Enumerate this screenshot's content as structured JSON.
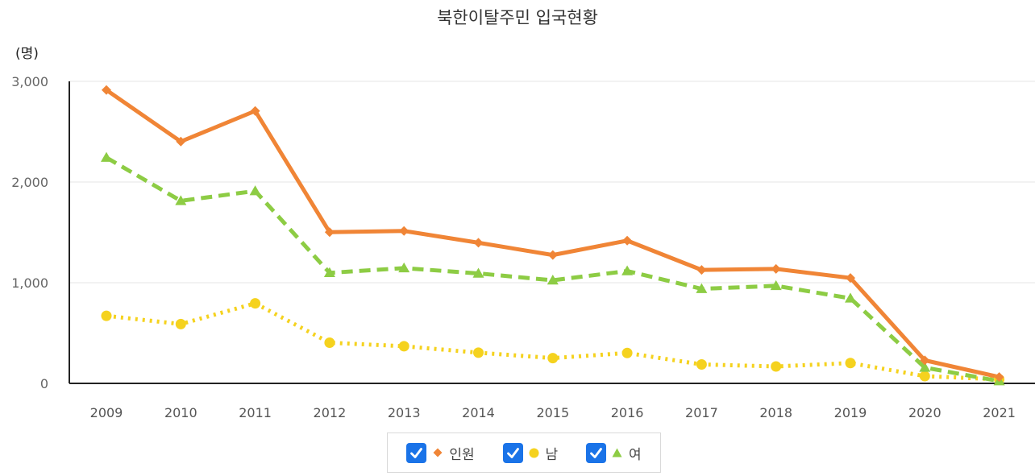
{
  "chart_data": {
    "type": "line",
    "title": "북한이탈주민 입국현황",
    "unit": "(명)",
    "categories": [
      "2009",
      "2010",
      "2011",
      "2012",
      "2013",
      "2014",
      "2015",
      "2016",
      "2017",
      "2018",
      "2019",
      "2020",
      "2021"
    ],
    "ylim": [
      0,
      3000
    ],
    "yticks": [
      0,
      1000,
      2000,
      3000
    ],
    "ytick_labels": [
      "0",
      "1,000",
      "2,000",
      "3,000"
    ],
    "grid": true,
    "legend_position": "bottom",
    "series": [
      {
        "name": "인원",
        "color": "#f08536",
        "line_style": "solid",
        "marker": "diamond",
        "values": [
          2914,
          2402,
          2706,
          1502,
          1514,
          1397,
          1275,
          1418,
          1127,
          1137,
          1047,
          229,
          63
        ]
      },
      {
        "name": "남",
        "color": "#f5d21e",
        "line_style": "dotted",
        "marker": "circle",
        "values": [
          671,
          589,
          795,
          404,
          369,
          305,
          251,
          302,
          188,
          168,
          202,
          72,
          40
        ]
      },
      {
        "name": "여",
        "color": "#8dcc44",
        "line_style": "dashed",
        "marker": "triangle",
        "values": [
          2243,
          1813,
          1911,
          1098,
          1145,
          1092,
          1024,
          1116,
          939,
          969,
          845,
          157,
          23
        ]
      }
    ]
  }
}
